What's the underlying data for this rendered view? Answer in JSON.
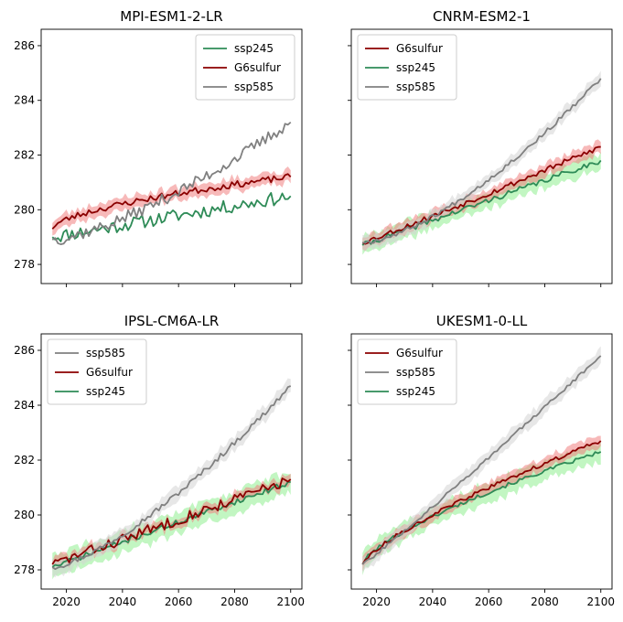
{
  "chart_data": [
    {
      "type": "line",
      "title": "MPI-ESM1-2-LR",
      "xlim": [
        2011,
        2104
      ],
      "ylim": [
        277.3,
        286.6
      ],
      "xticks": [
        2020,
        2040,
        2060,
        2080,
        2100
      ],
      "yticks": [
        278,
        280,
        282,
        284,
        286
      ],
      "show_xticklabels": false,
      "show_yticklabels": true,
      "legend": {
        "position": "top-right",
        "order": [
          "ssp245",
          "G6sulfur",
          "ssp585"
        ]
      },
      "series": [
        {
          "name": "ssp245",
          "color": "#2e8b57",
          "band_color": "#90ee90",
          "band": false,
          "start": 279.0,
          "end": 280.5,
          "curve": 1.0,
          "noise": 0.25,
          "spread": 0.0,
          "seed": 11
        },
        {
          "name": "G6sulfur",
          "color": "#8b0000",
          "band_color": "#f08080",
          "band": true,
          "start": 279.3,
          "end": 281.2,
          "curve": 0.6,
          "noise": 0.12,
          "spread": 0.25,
          "seed": 23
        },
        {
          "name": "ssp585",
          "color": "#808080",
          "band_color": "#d3d3d3",
          "band": false,
          "start": 278.9,
          "end": 283.2,
          "curve": 1.4,
          "noise": 0.22,
          "spread": 0.0,
          "seed": 37
        }
      ]
    },
    {
      "type": "line",
      "title": "CNRM-ESM2-1",
      "xlim": [
        2011,
        2104
      ],
      "ylim": [
        277.3,
        286.6
      ],
      "xticks": [
        2020,
        2040,
        2060,
        2080,
        2100
      ],
      "yticks": [
        278,
        280,
        282,
        284,
        286
      ],
      "show_xticklabels": false,
      "show_yticklabels": false,
      "legend": {
        "position": "top-left",
        "order": [
          "G6sulfur",
          "ssp245",
          "ssp585"
        ]
      },
      "series": [
        {
          "name": "ssp245",
          "color": "#2e8b57",
          "band_color": "#90ee90",
          "band": true,
          "start": 278.7,
          "end": 281.8,
          "curve": 1.0,
          "noise": 0.1,
          "spread": 0.35,
          "seed": 41
        },
        {
          "name": "G6sulfur",
          "color": "#8b0000",
          "band_color": "#f08080",
          "band": true,
          "start": 278.8,
          "end": 282.3,
          "curve": 1.05,
          "noise": 0.1,
          "spread": 0.25,
          "seed": 53
        },
        {
          "name": "ssp585",
          "color": "#808080",
          "band_color": "#d3d3d3",
          "band": true,
          "start": 278.8,
          "end": 284.8,
          "curve": 1.5,
          "noise": 0.08,
          "spread": 0.25,
          "seed": 67
        }
      ]
    },
    {
      "type": "line",
      "title": "IPSL-CM6A-LR",
      "xlim": [
        2011,
        2104
      ],
      "ylim": [
        277.3,
        286.6
      ],
      "xticks": [
        2020,
        2040,
        2060,
        2080,
        2100
      ],
      "yticks": [
        278,
        280,
        282,
        284,
        286
      ],
      "show_xticklabels": true,
      "show_yticklabels": true,
      "legend": {
        "position": "top-left",
        "order": [
          "ssp585",
          "G6sulfur",
          "ssp245"
        ]
      },
      "series": [
        {
          "name": "ssp245",
          "color": "#2e8b57",
          "band_color": "#90ee90",
          "band": true,
          "start": 278.1,
          "end": 281.2,
          "curve": 1.0,
          "noise": 0.1,
          "spread": 0.45,
          "seed": 71
        },
        {
          "name": "G6sulfur",
          "color": "#8b0000",
          "band_color": "#f08080",
          "band": true,
          "start": 278.2,
          "end": 281.3,
          "curve": 1.0,
          "noise": 0.2,
          "spread": 0.2,
          "seed": 83
        },
        {
          "name": "ssp585",
          "color": "#808080",
          "band_color": "#d3d3d3",
          "band": true,
          "start": 278.1,
          "end": 284.7,
          "curve": 1.4,
          "noise": 0.1,
          "spread": 0.3,
          "seed": 97
        }
      ]
    },
    {
      "type": "line",
      "title": "UKESM1-0-LL",
      "xlim": [
        2011,
        2104
      ],
      "ylim": [
        277.3,
        286.6
      ],
      "xticks": [
        2020,
        2040,
        2060,
        2080,
        2100
      ],
      "yticks": [
        278,
        280,
        282,
        284,
        286
      ],
      "show_xticklabels": true,
      "show_yticklabels": false,
      "legend": {
        "position": "top-left",
        "order": [
          "G6sulfur",
          "ssp585",
          "ssp245"
        ]
      },
      "series": [
        {
          "name": "ssp245",
          "color": "#2e8b57",
          "band_color": "#90ee90",
          "band": true,
          "start": 278.2,
          "end": 282.3,
          "curve": 0.7,
          "noise": 0.07,
          "spread": 0.4,
          "seed": 101
        },
        {
          "name": "G6sulfur",
          "color": "#8b0000",
          "band_color": "#f08080",
          "band": true,
          "start": 278.2,
          "end": 282.7,
          "curve": 0.75,
          "noise": 0.07,
          "spread": 0.25,
          "seed": 113
        },
        {
          "name": "ssp585",
          "color": "#808080",
          "band_color": "#d3d3d3",
          "band": true,
          "start": 278.2,
          "end": 285.8,
          "curve": 1.05,
          "noise": 0.06,
          "spread": 0.3,
          "seed": 127
        }
      ]
    }
  ]
}
